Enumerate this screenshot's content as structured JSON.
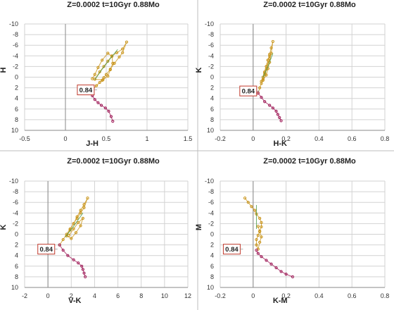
{
  "chart_data": [
    {
      "type": "scatter",
      "title": "Z=0.0002  t=10Gyr  0.88Mo",
      "xlabel": "J-H",
      "ylabel": "H",
      "xlim": [
        -0.5,
        1.5
      ],
      "ylim": [
        10,
        -10
      ],
      "xticks": [
        "-0.5",
        "0",
        "0.5",
        "1",
        "1.5"
      ],
      "yticks": [
        "-10",
        "-8",
        "-6",
        "-4",
        "-2",
        "0",
        "2",
        "4",
        "6",
        "8",
        "10"
      ],
      "grid": true,
      "annotation": {
        "text": "0.84",
        "x": 0.37,
        "y": 2.4
      },
      "series": [
        {
          "color": "#c9951c",
          "x": [
            0.31,
            0.34,
            0.38,
            0.42,
            0.45,
            0.47,
            0.5,
            0.55,
            0.6,
            0.66,
            0.7,
            0.75,
            0.7,
            0.63,
            0.57,
            0.52,
            0.47,
            0.42,
            0.36,
            0.46,
            0.52,
            0.55,
            0.58,
            0.57,
            0.52,
            0.45,
            0.4,
            0.36,
            0.33
          ],
          "y": [
            2.8,
            2.2,
            1.6,
            1.0,
            0.6,
            0.1,
            -0.5,
            -1.5,
            -2.6,
            -3.8,
            -4.6,
            -6.6,
            -5.3,
            -4.6,
            -4.0,
            -3.0,
            -2.0,
            -1.0,
            0.4,
            0.5,
            -0.2,
            -1.4,
            -2.6,
            -3.9,
            -4.5,
            -3.2,
            -1.8,
            -0.5,
            0.3
          ]
        },
        {
          "color": "#a01e5a",
          "x": [
            0.31,
            0.33,
            0.36,
            0.4,
            0.44,
            0.49,
            0.53,
            0.56,
            0.58
          ],
          "y": [
            2.8,
            3.5,
            4.2,
            4.8,
            5.3,
            5.8,
            6.4,
            7.4,
            8.3
          ]
        },
        {
          "color": "#4a9a4a",
          "x": [
            0.36,
            0.45,
            0.55,
            0.64
          ],
          "y": [
            0.5,
            -1.5,
            -3.5,
            -5.2
          ]
        }
      ]
    },
    {
      "type": "scatter",
      "title": "Z=0.0002  t=10Gyr  0.88Mo",
      "xlabel": "H-K",
      "ylabel": "K",
      "xlim": [
        -0.2,
        0.8
      ],
      "ylim": [
        10,
        -10
      ],
      "xticks": [
        "-0.2",
        "0",
        "0.2",
        "0.4",
        "0.6",
        "0.8"
      ],
      "yticks": [
        "-10",
        "-8",
        "-6",
        "-4",
        "-2",
        "0",
        "2",
        "4",
        "6",
        "8",
        "10"
      ],
      "grid": true,
      "annotation": {
        "text": "0.84",
        "x": 0.03,
        "y": 2.6
      },
      "series": [
        {
          "color": "#c9951c",
          "x": [
            0.03,
            0.04,
            0.05,
            0.06,
            0.07,
            0.08,
            0.09,
            0.1,
            0.11,
            0.12,
            0.11,
            0.1,
            0.09,
            0.08,
            0.07,
            0.06,
            0.05,
            0.06,
            0.08,
            0.09,
            0.1,
            0.1,
            0.09,
            0.08,
            0.07
          ],
          "y": [
            3.0,
            2.0,
            1.2,
            0.4,
            -0.5,
            -1.5,
            -2.5,
            -3.5,
            -4.5,
            -6.7,
            -5.5,
            -4.3,
            -3.2,
            -2.0,
            -1.0,
            0.0,
            0.8,
            0.6,
            -0.4,
            -1.6,
            -2.8,
            -4.0,
            -3.2,
            -2.0,
            -0.8
          ]
        },
        {
          "color": "#a01e5a",
          "x": [
            0.03,
            0.05,
            0.07,
            0.1,
            0.12,
            0.14,
            0.15,
            0.16,
            0.17
          ],
          "y": [
            3.0,
            3.8,
            4.6,
            5.3,
            5.8,
            6.4,
            7.0,
            7.6,
            8.2
          ]
        },
        {
          "color": "#4a9a4a",
          "x": [
            0.06,
            0.09,
            0.12
          ],
          "y": [
            0.0,
            -2.0,
            -4.5
          ]
        }
      ]
    },
    {
      "type": "scatter",
      "title": "Z=0.0002  t=10Gyr  0.88Mo",
      "xlabel": "V-K",
      "ylabel": "K",
      "xlim": [
        -2,
        12
      ],
      "ylim": [
        10,
        -10
      ],
      "xticks": [
        "-2",
        "0",
        "2",
        "4",
        "6",
        "8",
        "10",
        "12"
      ],
      "yticks": [
        "-10",
        "-8",
        "-6",
        "-4",
        "-2",
        "0",
        "2",
        "4",
        "6",
        "8",
        "10"
      ],
      "grid": true,
      "annotation": {
        "text": "0.84",
        "x": 0.7,
        "y": 2.8
      },
      "series": [
        {
          "color": "#c9951c",
          "x": [
            1.0,
            1.3,
            1.6,
            1.9,
            2.2,
            2.5,
            2.8,
            3.1,
            3.4,
            3.1,
            2.8,
            2.5,
            2.2,
            1.9,
            1.6,
            2.0,
            2.4,
            2.8,
            3.0,
            2.6,
            2.2,
            1.8
          ],
          "y": [
            2.0,
            1.0,
            0.0,
            -1.0,
            -2.0,
            -3.0,
            -4.0,
            -5.0,
            -6.8,
            -5.6,
            -4.5,
            -3.3,
            -2.0,
            -0.8,
            0.3,
            0.8,
            -0.3,
            -1.6,
            -3.0,
            -2.2,
            -1.0,
            0.2
          ]
        },
        {
          "color": "#a01e5a",
          "x": [
            1.0,
            1.3,
            1.7,
            2.2,
            2.6,
            2.9,
            3.0,
            3.1,
            3.2
          ],
          "y": [
            2.0,
            3.0,
            4.0,
            4.8,
            5.4,
            6.0,
            6.6,
            7.3,
            8.0
          ]
        },
        {
          "color": "#4a9a4a",
          "x": [
            1.5,
            2.2,
            3.0
          ],
          "y": [
            0.5,
            -1.5,
            -4.0
          ]
        }
      ]
    },
    {
      "type": "scatter",
      "title": "Z=0.0002  t=10Gyr  0.88Mo",
      "xlabel": "K-M",
      "ylabel": "M",
      "xlim": [
        -0.2,
        0.8
      ],
      "ylim": [
        10,
        -10
      ],
      "xticks": [
        "-0.2",
        "0",
        "0.2",
        "0.4",
        "0.6",
        "0.8"
      ],
      "yticks": [
        "-10",
        "-8",
        "-6",
        "-4",
        "-2",
        "0",
        "2",
        "4",
        "6",
        "8",
        "10"
      ],
      "grid": true,
      "annotation": {
        "text": "0.84",
        "x": -0.07,
        "y": 2.8
      },
      "series": [
        {
          "color": "#c9951c",
          "x": [
            -0.05,
            -0.03,
            -0.01,
            0.01,
            0.02,
            0.04,
            0.05,
            0.05,
            0.04,
            0.03,
            0.02,
            0.02,
            0.03,
            0.04,
            0.05,
            0.04,
            0.03
          ],
          "y": [
            -6.8,
            -6.0,
            -5.2,
            -4.5,
            -3.8,
            -3.0,
            -2.2,
            -1.4,
            -0.6,
            0.2,
            1.0,
            2.0,
            2.8,
            1.5,
            0.5,
            -0.5,
            -1.5
          ]
        },
        {
          "color": "#a01e5a",
          "x": [
            0.02,
            0.03,
            0.05,
            0.08,
            0.11,
            0.14,
            0.17,
            0.2,
            0.24
          ],
          "y": [
            3.0,
            3.6,
            4.2,
            4.9,
            5.6,
            6.3,
            7.0,
            7.5,
            8.0
          ]
        },
        {
          "color": "#4a9a4a",
          "x": [
            0.02,
            0.02
          ],
          "y": [
            -5.5,
            -1.0
          ]
        }
      ]
    }
  ]
}
